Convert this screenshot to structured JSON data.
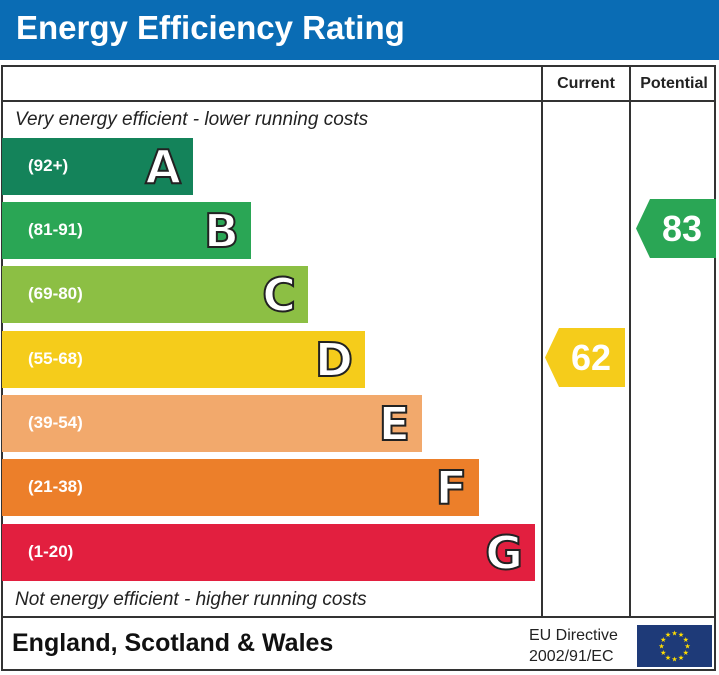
{
  "title": "Energy Efficiency Rating",
  "columns": {
    "current": "Current",
    "potential": "Potential"
  },
  "top_note": "Very energy efficient - lower running costs",
  "bottom_note": "Not energy efficient - higher running costs",
  "footer": {
    "region": "England, Scotland & Wales",
    "directive_line1": "EU Directive",
    "directive_line2": "2002/91/EC"
  },
  "chart_data": {
    "type": "bar",
    "bands": [
      {
        "letter": "A",
        "range": "(92+)",
        "color": "#14835a"
      },
      {
        "letter": "B",
        "range": "(81-91)",
        "color": "#2aa655"
      },
      {
        "letter": "C",
        "range": "(69-80)",
        "color": "#8cbf44"
      },
      {
        "letter": "D",
        "range": "(55-68)",
        "color": "#f5cc1b"
      },
      {
        "letter": "E",
        "range": "(39-54)",
        "color": "#f2a96c"
      },
      {
        "letter": "F",
        "range": "(21-38)",
        "color": "#ec7f2a"
      },
      {
        "letter": "G",
        "range": "(1-20)",
        "color": "#e21f3f"
      }
    ],
    "current": {
      "value": "62",
      "band": "D",
      "color": "#f5cc1b"
    },
    "potential": {
      "value": "83",
      "band": "B",
      "color": "#2aa655"
    }
  }
}
